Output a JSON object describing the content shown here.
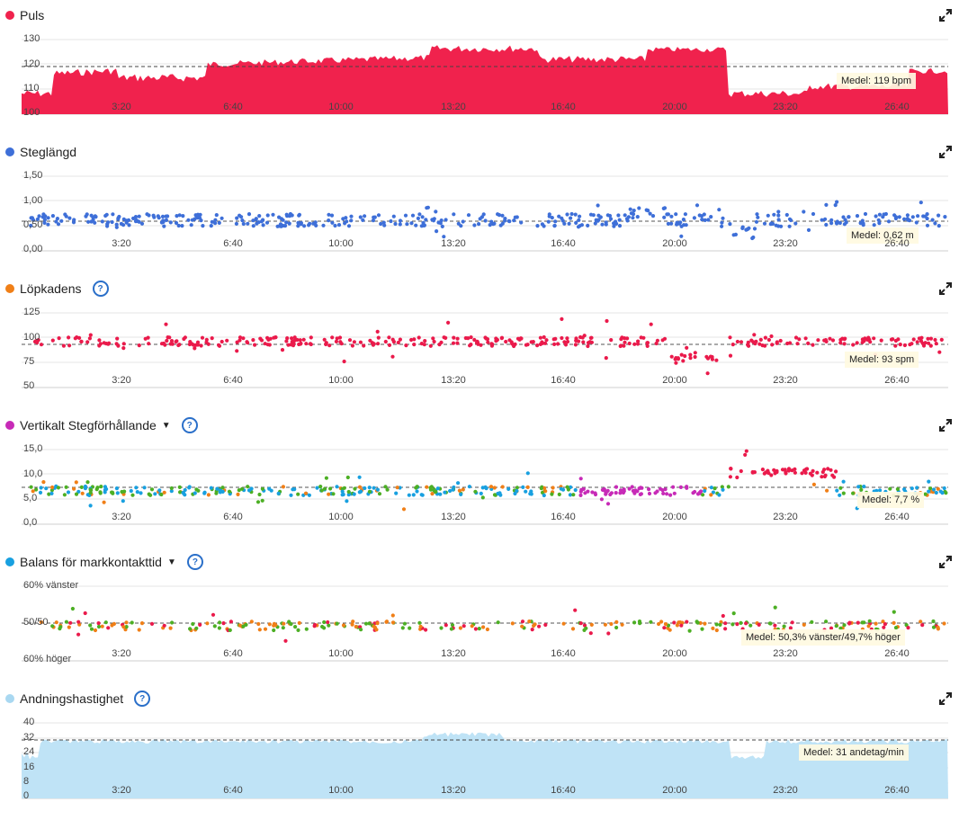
{
  "x_ticks": [
    "3:20",
    "6:40",
    "10:00",
    "13:20",
    "16:40",
    "20:00",
    "23:20",
    "26:40"
  ],
  "colors": {
    "puls": "#f0224d",
    "steg": "#3e6fd8",
    "lopkadens": "#f07f17",
    "vert": "#c72ab7",
    "balans": "#18a0e0",
    "andning": "#a9d8f1"
  },
  "panels": {
    "puls": {
      "title": "Puls",
      "yticks": [
        "130",
        "120",
        "110",
        "100"
      ],
      "medel": "Medel: 119 bpm"
    },
    "steglangd": {
      "title": "Steglängd",
      "yticks": [
        "1,50",
        "1,00",
        "0,50",
        "0,00"
      ],
      "medel": "Medel: 0,62 m"
    },
    "lopkadens": {
      "title": "Löpkadens",
      "yticks": [
        "125",
        "100",
        "75",
        "50"
      ],
      "medel": "Medel: 93 spm"
    },
    "vertikalt": {
      "title": "Vertikalt Stegförhållande",
      "yticks": [
        "15,0",
        "10,0",
        "5,0",
        "0,0"
      ],
      "medel": "Medel: 7,7 %"
    },
    "balans": {
      "title": "Balans för markkontakttid",
      "yticks": [
        "60% vänster",
        "50/50",
        "60% höger"
      ],
      "medel": "Medel: 50,3% vänster/49,7% höger"
    },
    "andning": {
      "title": "Andningshastighet",
      "yticks": [
        "40",
        "32",
        "24",
        "16",
        "8",
        "0"
      ],
      "medel": "Medel: 31 andetag/min"
    }
  }
}
